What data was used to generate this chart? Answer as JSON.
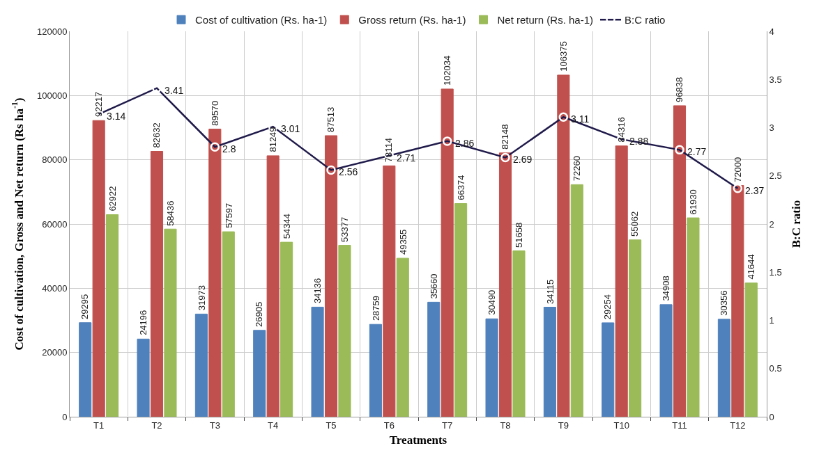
{
  "chart_data": {
    "type": "bar",
    "categories": [
      "T1",
      "T2",
      "T3",
      "T4",
      "T5",
      "T6",
      "T7",
      "T8",
      "T9",
      "T10",
      "T11",
      "T12"
    ],
    "series": [
      {
        "name": "Cost of cultivation (Rs. ha-1)",
        "color": "#4f81bd",
        "values": [
          29295,
          24196,
          31973,
          26905,
          34136,
          28759,
          35660,
          30490,
          34115,
          29254,
          34908,
          30356
        ]
      },
      {
        "name": "Gross return (Rs. ha-1)",
        "color": "#c0504d",
        "values": [
          92217,
          82632,
          89570,
          81249,
          87513,
          78114,
          102034,
          82148,
          106375,
          84316,
          96838,
          72000
        ]
      },
      {
        "name": "Net return (Rs. ha-1)",
        "color": "#9bbb59",
        "values": [
          62922,
          58436,
          57597,
          54344,
          53377,
          49355,
          66374,
          51658,
          72260,
          55062,
          61930,
          41644
        ]
      },
      {
        "name": "B:C ratio",
        "type": "line",
        "axis": "y2",
        "color": "#1f1a4a",
        "marker": "circle",
        "values": [
          3.14,
          3.41,
          2.8,
          3.01,
          2.56,
          2.71,
          2.86,
          2.69,
          3.11,
          2.88,
          2.77,
          2.37
        ]
      }
    ],
    "xlabel": "Treatments",
    "ylabel": "Cost of cultivation, Gross and Net return (Rs ha$^{-1}$)",
    "y2label": "B:C ratio",
    "ylim": [
      0,
      120000
    ],
    "yticks": [
      0,
      20000,
      40000,
      60000,
      80000,
      100000,
      120000
    ],
    "y2lim": [
      0,
      4
    ],
    "y2ticks": [
      0,
      0.5,
      1,
      1.5,
      2,
      2.5,
      3,
      3.5,
      4
    ],
    "grid": true,
    "legend": "top",
    "data_labels": true
  }
}
